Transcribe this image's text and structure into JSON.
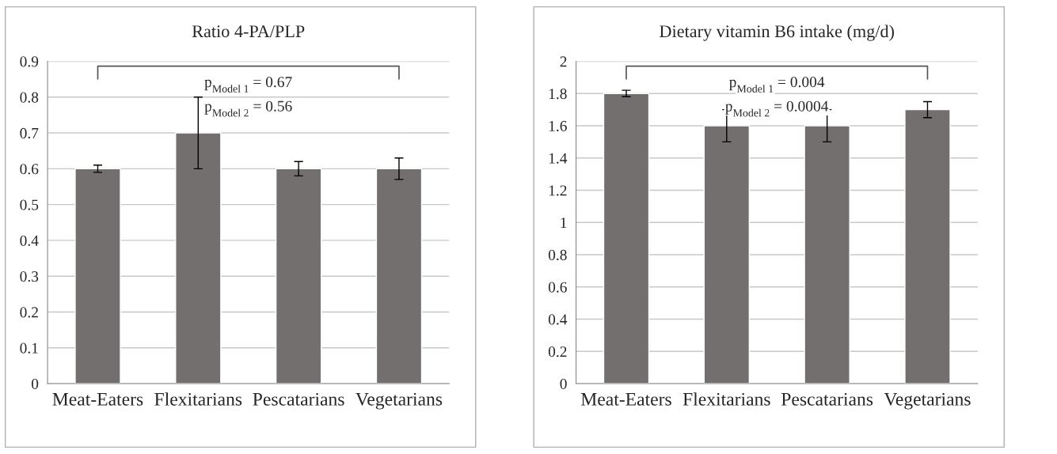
{
  "chart_data": [
    {
      "type": "bar",
      "title": "Ratio 4-PA/PLP",
      "categories": [
        "Meat-Eaters",
        "Flexitarians",
        "Pescatarians",
        "Vegetarians"
      ],
      "values": [
        0.6,
        0.7,
        0.6,
        0.6
      ],
      "errors": [
        0.01,
        0.1,
        0.02,
        0.03
      ],
      "color": "#746f6f",
      "ylim": [
        0,
        0.9
      ],
      "yticks": [
        0,
        0.1,
        0.2,
        0.3,
        0.4,
        0.5,
        0.6,
        0.7,
        0.8,
        0.9
      ],
      "grid": "y",
      "annotations": [
        "p$_{Model 1}$ = 0.67",
        "p$_{Model 2}$ = 0.56"
      ]
    },
    {
      "type": "bar",
      "title": "Dietary vitamin B6 intake (mg/d)",
      "categories": [
        "Meat-Eaters",
        "Flexitarians",
        "Pescatarians",
        "Vegetarians"
      ],
      "values": [
        1.8,
        1.6,
        1.6,
        1.7
      ],
      "errors": [
        0.02,
        0.1,
        0.1,
        0.05
      ],
      "color": "#746f6f",
      "ylim": [
        0,
        2
      ],
      "yticks": [
        0,
        0.2,
        0.4,
        0.6,
        0.8,
        1,
        1.2,
        1.4,
        1.6,
        1.8,
        2
      ],
      "grid": "y",
      "annotations": [
        "p$_{Model 1}$ = 0.004",
        "p$_{Model 2}$ = 0.0004"
      ]
    }
  ]
}
